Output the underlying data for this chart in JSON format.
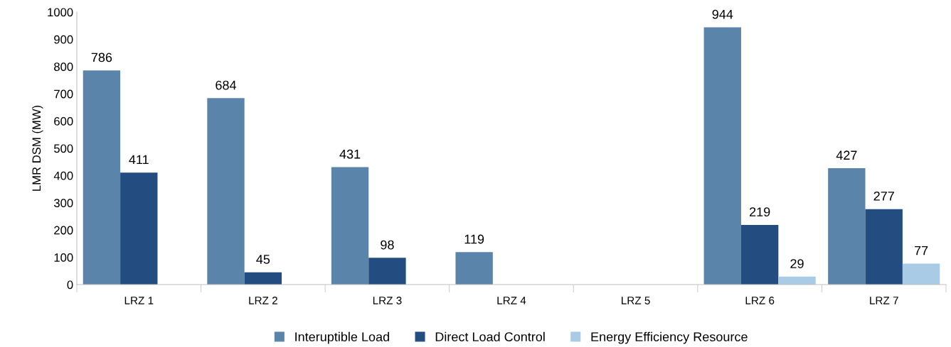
{
  "chart_data": {
    "type": "bar",
    "ylabel": "LMR DSM (MW)",
    "categories": [
      "LRZ 1",
      "LRZ 2",
      "LRZ 3",
      "LRZ 4",
      "LRZ 5",
      "LRZ 6",
      "LRZ 7"
    ],
    "series": [
      {
        "name": "Interuptible Load",
        "color": "#5b84aa",
        "values": [
          786,
          684,
          431,
          119,
          null,
          944,
          427
        ]
      },
      {
        "name": "Direct Load Control",
        "color": "#234d81",
        "values": [
          411,
          45,
          98,
          null,
          null,
          219,
          277
        ]
      },
      {
        "name": "Energy Efficiency Resource",
        "color": "#a9cbe5",
        "values": [
          null,
          null,
          null,
          null,
          null,
          29,
          77
        ]
      }
    ],
    "ylim": [
      0,
      1000
    ],
    "yticks": [
      0,
      100,
      200,
      300,
      400,
      500,
      600,
      700,
      800,
      900,
      1000
    ],
    "data_labels": true,
    "grid": false,
    "legend": "bottom"
  }
}
